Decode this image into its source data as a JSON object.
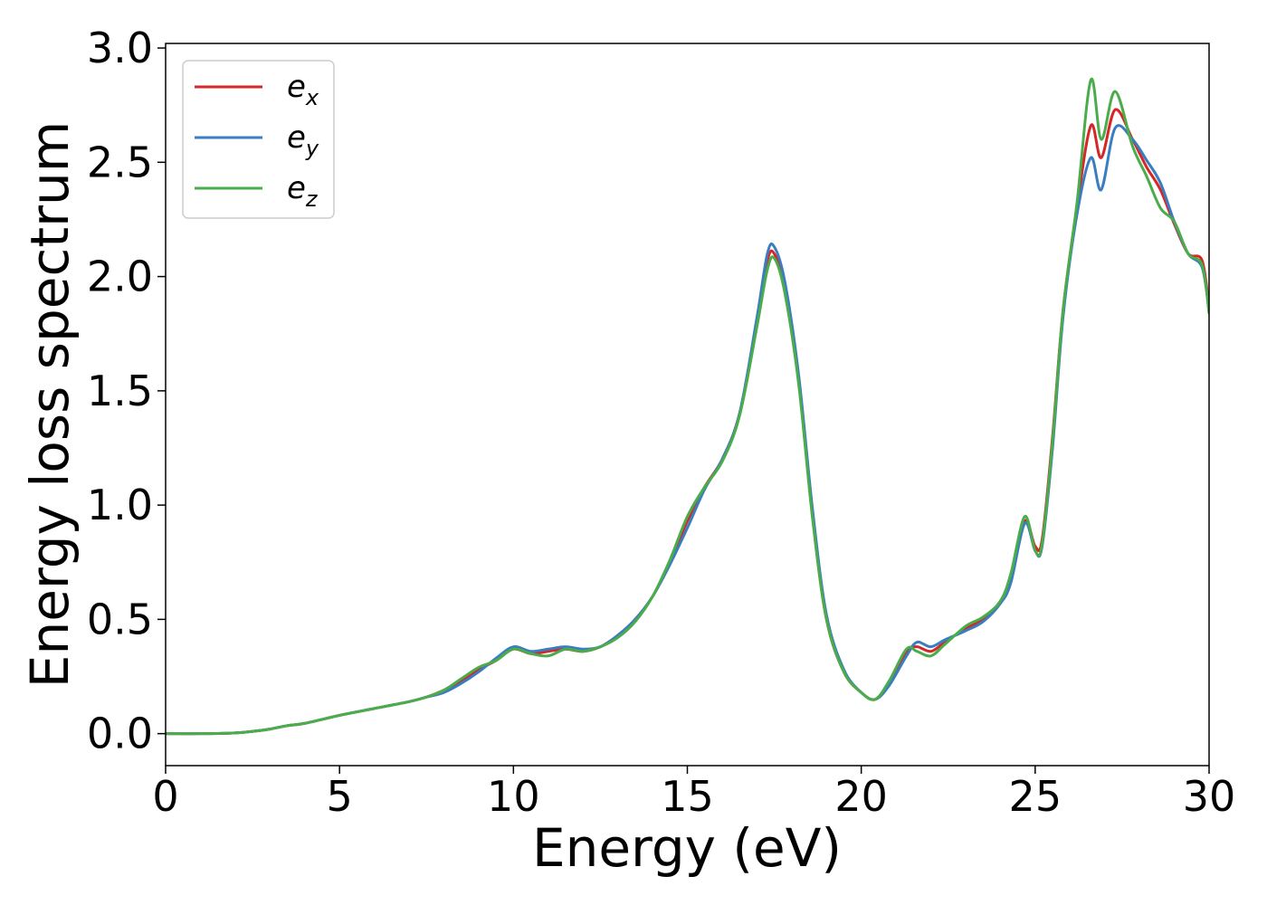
{
  "chart_data": {
    "type": "line",
    "xlabel": "Energy (eV)",
    "ylabel": "Energy loss spectrum",
    "xlim": [
      0,
      30
    ],
    "ylim": [
      -0.14,
      3.02
    ],
    "xticks": [
      0,
      5,
      10,
      15,
      20,
      25,
      30
    ],
    "yticks": [
      0.0,
      0.5,
      1.0,
      1.5,
      2.0,
      2.5,
      3.0
    ],
    "xtick_labels": [
      "0",
      "5",
      "10",
      "15",
      "20",
      "25",
      "30"
    ],
    "ytick_labels": [
      "0.0",
      "0.5",
      "1.0",
      "1.5",
      "2.0",
      "2.5",
      "3.0"
    ],
    "grid": false,
    "legend_position": "top-left",
    "series": [
      {
        "name": "e",
        "subscript": "x",
        "color": "#d62728",
        "x": [
          0,
          1,
          2,
          2.5,
          3,
          3.5,
          4,
          5,
          6,
          7,
          7.5,
          8,
          8.5,
          9,
          9.5,
          10,
          10.5,
          11,
          11.5,
          12,
          12.5,
          13,
          13.5,
          14,
          14.5,
          15,
          15.5,
          16,
          16.5,
          17,
          17.3,
          17.5,
          17.8,
          18.2,
          18.6,
          19,
          19.5,
          20,
          20.4,
          20.8,
          21.3,
          21.6,
          22,
          22.4,
          23,
          23.5,
          24,
          24.3,
          24.7,
          25,
          25.2,
          25.5,
          25.8,
          26.2,
          26.6,
          26.9,
          27.3,
          27.8,
          28.2,
          28.6,
          29,
          29.4,
          29.8,
          30
        ],
        "y": [
          0.0,
          0.0,
          0.003,
          0.01,
          0.02,
          0.035,
          0.045,
          0.08,
          0.11,
          0.14,
          0.16,
          0.19,
          0.23,
          0.28,
          0.32,
          0.37,
          0.35,
          0.36,
          0.37,
          0.36,
          0.38,
          0.43,
          0.5,
          0.6,
          0.75,
          0.93,
          1.08,
          1.2,
          1.4,
          1.8,
          2.07,
          2.1,
          1.95,
          1.55,
          0.95,
          0.5,
          0.27,
          0.18,
          0.15,
          0.22,
          0.36,
          0.38,
          0.36,
          0.4,
          0.46,
          0.5,
          0.58,
          0.68,
          0.93,
          0.82,
          0.85,
          1.3,
          1.85,
          2.3,
          2.66,
          2.52,
          2.73,
          2.6,
          2.48,
          2.38,
          2.23,
          2.1,
          2.07,
          1.86
        ]
      },
      {
        "name": "e",
        "subscript": "y",
        "color": "#3a7dc1",
        "x": [
          0,
          1,
          2,
          2.5,
          3,
          3.5,
          4,
          5,
          6,
          7,
          7.5,
          8,
          8.5,
          9,
          9.5,
          10,
          10.5,
          11,
          11.5,
          12,
          12.5,
          13,
          13.5,
          14,
          14.5,
          15,
          15.5,
          16,
          16.5,
          17,
          17.3,
          17.5,
          17.8,
          18.2,
          18.6,
          19,
          19.5,
          20,
          20.4,
          20.8,
          21.3,
          21.6,
          22,
          22.4,
          23,
          23.5,
          24,
          24.3,
          24.7,
          25,
          25.2,
          25.5,
          25.8,
          26.2,
          26.6,
          26.9,
          27.3,
          27.8,
          28.2,
          28.6,
          29,
          29.4,
          29.8,
          30
        ],
        "y": [
          0.0,
          0.0,
          0.003,
          0.01,
          0.02,
          0.035,
          0.045,
          0.08,
          0.11,
          0.14,
          0.16,
          0.18,
          0.22,
          0.27,
          0.33,
          0.38,
          0.36,
          0.37,
          0.38,
          0.37,
          0.38,
          0.43,
          0.5,
          0.6,
          0.74,
          0.9,
          1.07,
          1.2,
          1.4,
          1.82,
          2.1,
          2.13,
          1.98,
          1.57,
          0.98,
          0.52,
          0.28,
          0.18,
          0.15,
          0.21,
          0.34,
          0.4,
          0.38,
          0.41,
          0.45,
          0.49,
          0.57,
          0.66,
          0.92,
          0.8,
          0.82,
          1.25,
          1.82,
          2.27,
          2.52,
          2.38,
          2.65,
          2.6,
          2.51,
          2.41,
          2.24,
          2.1,
          2.04,
          1.85
        ]
      },
      {
        "name": "e",
        "subscript": "z",
        "color": "#4aac4a",
        "x": [
          0,
          1,
          2,
          2.5,
          3,
          3.5,
          4,
          5,
          6,
          7,
          7.5,
          8,
          8.5,
          9,
          9.5,
          10,
          10.5,
          11,
          11.5,
          12,
          12.5,
          13,
          13.5,
          14,
          14.5,
          15,
          15.5,
          16,
          16.5,
          17,
          17.3,
          17.5,
          17.8,
          18.2,
          18.6,
          19,
          19.5,
          20,
          20.4,
          20.8,
          21.3,
          21.6,
          22,
          22.4,
          23,
          23.5,
          24,
          24.3,
          24.7,
          25,
          25.2,
          25.5,
          25.8,
          26.2,
          26.6,
          26.9,
          27.3,
          27.8,
          28.2,
          28.6,
          29,
          29.4,
          29.8,
          30
        ],
        "y": [
          0.0,
          0.0,
          0.003,
          0.01,
          0.02,
          0.035,
          0.045,
          0.08,
          0.11,
          0.14,
          0.16,
          0.19,
          0.24,
          0.29,
          0.32,
          0.37,
          0.35,
          0.34,
          0.37,
          0.36,
          0.38,
          0.42,
          0.49,
          0.6,
          0.76,
          0.95,
          1.08,
          1.19,
          1.39,
          1.78,
          2.03,
          2.08,
          1.93,
          1.53,
          0.94,
          0.5,
          0.27,
          0.18,
          0.15,
          0.23,
          0.37,
          0.36,
          0.34,
          0.39,
          0.47,
          0.51,
          0.58,
          0.7,
          0.95,
          0.8,
          0.83,
          1.28,
          1.85,
          2.32,
          2.86,
          2.6,
          2.81,
          2.57,
          2.44,
          2.3,
          2.24,
          2.1,
          2.05,
          1.84
        ]
      }
    ]
  }
}
